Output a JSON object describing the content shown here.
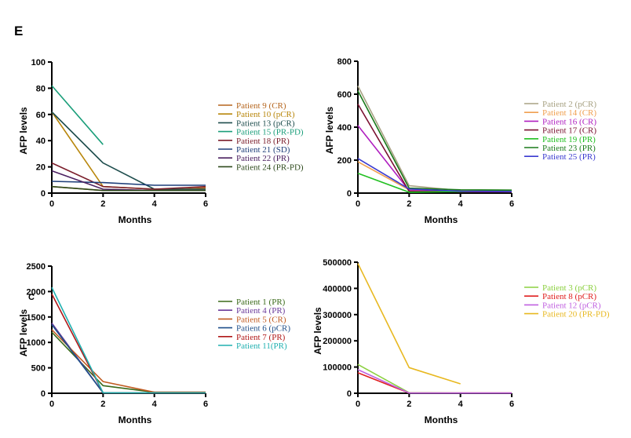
{
  "figure": {
    "panel_label": "E"
  },
  "chart_data": [
    {
      "type": "line",
      "title": "",
      "xlabel": "Months",
      "ylabel": "AFP levels",
      "xlim": [
        0,
        6
      ],
      "ylim": [
        0,
        100
      ],
      "xticks": [
        0,
        2,
        4,
        6
      ],
      "yticks": [
        0,
        20,
        40,
        60,
        80,
        100
      ],
      "legend_position": "right",
      "series": [
        {
          "name": "Patient  9  (CR)",
          "color": "#b5651d",
          "x": [
            0,
            2,
            4,
            6
          ],
          "y": [
            5,
            2,
            2,
            4
          ]
        },
        {
          "name": "Patient 10 (pCR)",
          "color": "#b8860b",
          "x": [
            0,
            2,
            4,
            6
          ],
          "y": [
            62,
            5,
            3,
            3
          ]
        },
        {
          "name": "Patient 13 (pCR)",
          "color": "#1f4e4e",
          "x": [
            0,
            2,
            4,
            6
          ],
          "y": [
            62,
            23,
            3,
            3
          ]
        },
        {
          "name": "Patient 15 (PR-PD)",
          "color": "#1a9e7a",
          "x": [
            0,
            2
          ],
          "y": [
            82,
            37
          ]
        },
        {
          "name": "Patient 18 (PR)",
          "color": "#7b1e2b",
          "x": [
            0,
            2,
            4,
            6
          ],
          "y": [
            23,
            5,
            3,
            5
          ]
        },
        {
          "name": "Patient 21 (SD)",
          "color": "#1f3f7a",
          "x": [
            0,
            2,
            4,
            6
          ],
          "y": [
            9,
            8,
            6,
            6
          ]
        },
        {
          "name": "Patient 22 (PR)",
          "color": "#4b2060",
          "x": [
            0,
            2,
            4,
            6
          ],
          "y": [
            17,
            3,
            2,
            2
          ]
        },
        {
          "name": "Patient 24 (PR-PD)",
          "color": "#2e4a1c",
          "x": [
            0,
            2,
            4,
            6
          ],
          "y": [
            5,
            2,
            2,
            2
          ]
        }
      ]
    },
    {
      "type": "line",
      "title": "",
      "xlabel": "Months",
      "ylabel": "AFP levels",
      "xlim": [
        0,
        6
      ],
      "ylim": [
        0,
        800
      ],
      "xticks": [
        0,
        2,
        4,
        6
      ],
      "yticks": [
        0,
        200,
        400,
        600,
        800
      ],
      "legend_position": "right",
      "series": [
        {
          "name": "Patient  2  (pCR)",
          "color": "#a8a283",
          "x": [
            0,
            2,
            4,
            6
          ],
          "y": [
            650,
            45,
            15,
            12
          ]
        },
        {
          "name": "Patient 14 (CR)",
          "color": "#f0a050",
          "x": [
            0,
            2,
            4,
            6
          ],
          "y": [
            190,
            20,
            10,
            8
          ]
        },
        {
          "name": "Patient 16 (CR)",
          "color": "#b020c0",
          "x": [
            0,
            2,
            4,
            6
          ],
          "y": [
            410,
            15,
            8,
            8
          ]
        },
        {
          "name": "Patient 17 (CR)",
          "color": "#7a1030",
          "x": [
            0,
            2,
            4,
            6
          ],
          "y": [
            540,
            10,
            10,
            10
          ]
        },
        {
          "name": "Patient 19 (PR)",
          "color": "#22c022",
          "x": [
            0,
            2,
            4,
            6
          ],
          "y": [
            120,
            5,
            10,
            15
          ]
        },
        {
          "name": "Patient 23 (PR)",
          "color": "#1a7a1a",
          "x": [
            0,
            2,
            4,
            6
          ],
          "y": [
            620,
            30,
            20,
            18
          ]
        },
        {
          "name": "Patient 25 (PR)",
          "color": "#3a3ad0",
          "x": [
            0,
            2,
            4,
            6
          ],
          "y": [
            210,
            25,
            12,
            10
          ]
        }
      ]
    },
    {
      "type": "line",
      "title": "",
      "xlabel": "Months",
      "ylabel": "AFP levels",
      "ylabel_suffix": "C",
      "xlim": [
        0,
        6
      ],
      "ylim": [
        0,
        2500
      ],
      "xticks": [
        0,
        2,
        4,
        6
      ],
      "yticks": [
        0,
        500,
        1000,
        1500,
        2000,
        2500
      ],
      "legend_position": "right",
      "series": [
        {
          "name": "Patient  1 (PR)",
          "color": "#3a6a1a",
          "x": [
            0,
            2,
            4,
            6
          ],
          "y": [
            1200,
            150,
            20,
            20
          ]
        },
        {
          "name": "Patient  4 (PR)",
          "color": "#6a3a9a",
          "x": [
            0,
            2,
            4,
            6
          ],
          "y": [
            1380,
            10,
            10,
            10
          ]
        },
        {
          "name": "Patient  5 (CR)",
          "color": "#c05a20",
          "x": [
            0,
            2,
            4,
            6
          ],
          "y": [
            1250,
            230,
            20,
            20
          ]
        },
        {
          "name": "Patient  6 (pCR)",
          "color": "#1f4f8a",
          "x": [
            0,
            2,
            4,
            6
          ],
          "y": [
            1350,
            10,
            10,
            10
          ]
        },
        {
          "name": "Patient  7 (PR)",
          "color": "#b01818",
          "x": [
            0,
            2,
            4,
            6
          ],
          "y": [
            1950,
            10,
            10,
            10
          ]
        },
        {
          "name": "Patient 11(PR)",
          "color": "#20b0b0",
          "x": [
            0,
            2,
            4,
            6
          ],
          "y": [
            2080,
            10,
            10,
            10
          ]
        }
      ]
    },
    {
      "type": "line",
      "title": "",
      "xlabel": "Months",
      "ylabel": "AFP levels",
      "xlim": [
        0,
        6
      ],
      "ylim": [
        0,
        500000
      ],
      "xticks": [
        0,
        2,
        4,
        6
      ],
      "yticks": [
        0,
        100000,
        200000,
        300000,
        400000,
        500000
      ],
      "legend_position": "right",
      "series": [
        {
          "name": "Patient  3  (pCR)",
          "color": "#8cd040",
          "x": [
            0,
            2,
            4,
            6
          ],
          "y": [
            110000,
            2000,
            1000,
            1000
          ]
        },
        {
          "name": "Patient  8  (pCR)",
          "color": "#e02020",
          "x": [
            0,
            2,
            4,
            6
          ],
          "y": [
            78000,
            1000,
            1000,
            1000
          ]
        },
        {
          "name": "Patient 12 (pCR)",
          "color": "#c060e0",
          "x": [
            0,
            2,
            4,
            6
          ],
          "y": [
            90000,
            1000,
            1000,
            1000
          ]
        },
        {
          "name": "Patient 20 (PR-PD)",
          "color": "#e8b820",
          "x": [
            0,
            2,
            4
          ],
          "y": [
            495000,
            98000,
            36000
          ]
        }
      ]
    }
  ]
}
